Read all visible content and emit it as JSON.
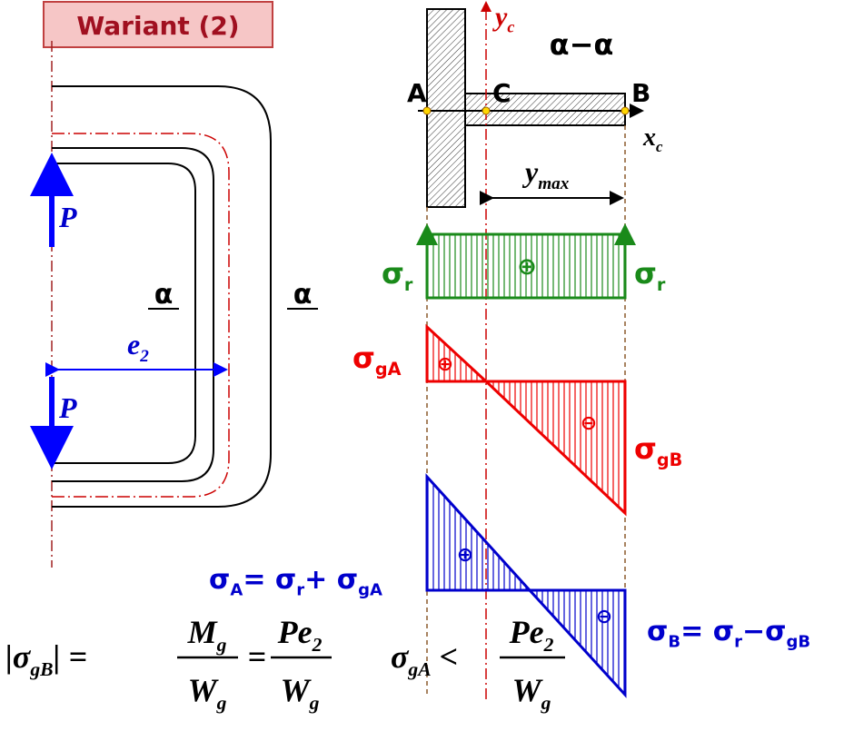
{
  "header": {
    "title": "Wariant (2)"
  },
  "frame": {
    "forces": [
      "P",
      "P"
    ],
    "section_marks": [
      "α",
      "α"
    ],
    "eccentricity": [
      {
        "t": "e",
        "s": "2"
      }
    ]
  },
  "cross_section": {
    "title": "α−α",
    "y_axis": [
      {
        "t": "y",
        "s": "c"
      }
    ],
    "x_axis": [
      {
        "t": "x",
        "s": "c"
      }
    ],
    "points": [
      "A",
      "C",
      "B"
    ],
    "dimension": [
      {
        "t": "y",
        "s": "max"
      }
    ]
  },
  "axial_stress": {
    "sign": "⊕",
    "left": [
      {
        "t": "σ",
        "s": "r"
      }
    ],
    "right": [
      {
        "t": "σ",
        "s": "r"
      }
    ]
  },
  "bending_stress": {
    "signs": [
      "⊕",
      "⊖"
    ],
    "left": [
      {
        "t": "σ",
        "s": "gA"
      }
    ],
    "right": [
      {
        "t": "σ",
        "s": "gB"
      }
    ]
  },
  "combined_stress": {
    "signs": [
      "⊕",
      "⊖"
    ],
    "left": [
      {
        "t": "σ",
        "s": "A"
      },
      {
        "t": "= σ",
        "s": "r"
      },
      {
        "t": "+ σ",
        "s": "gA"
      }
    ],
    "right": [
      {
        "t": "σ",
        "s": "B"
      },
      {
        "t": "= σ",
        "s": "r"
      },
      {
        "t": "−σ",
        "s": "gB"
      }
    ]
  },
  "formulas": [
    {
      "lhs": [
        {
          "t": "|σ",
          "s": "gB"
        },
        {
          "t": "| ="
        }
      ],
      "fraction_1": {
        "num": [
          {
            "t": "M",
            "s": "g"
          }
        ],
        "den": [
          {
            "t": "W",
            "s": "g"
          }
        ]
      },
      "mid": "=",
      "fraction_2": {
        "num": [
          {
            "t": "Pe",
            "s": "2"
          }
        ],
        "den": [
          {
            "t": "W",
            "s": "g"
          }
        ]
      }
    },
    {
      "lhs": [
        {
          "t": "σ",
          "s": "gA"
        },
        {
          "t": " <"
        }
      ],
      "fraction_1": {
        "num": [
          {
            "t": "Pe",
            "s": "2"
          }
        ],
        "den": [
          {
            "t": "W",
            "s": "g"
          }
        ]
      }
    }
  ]
}
